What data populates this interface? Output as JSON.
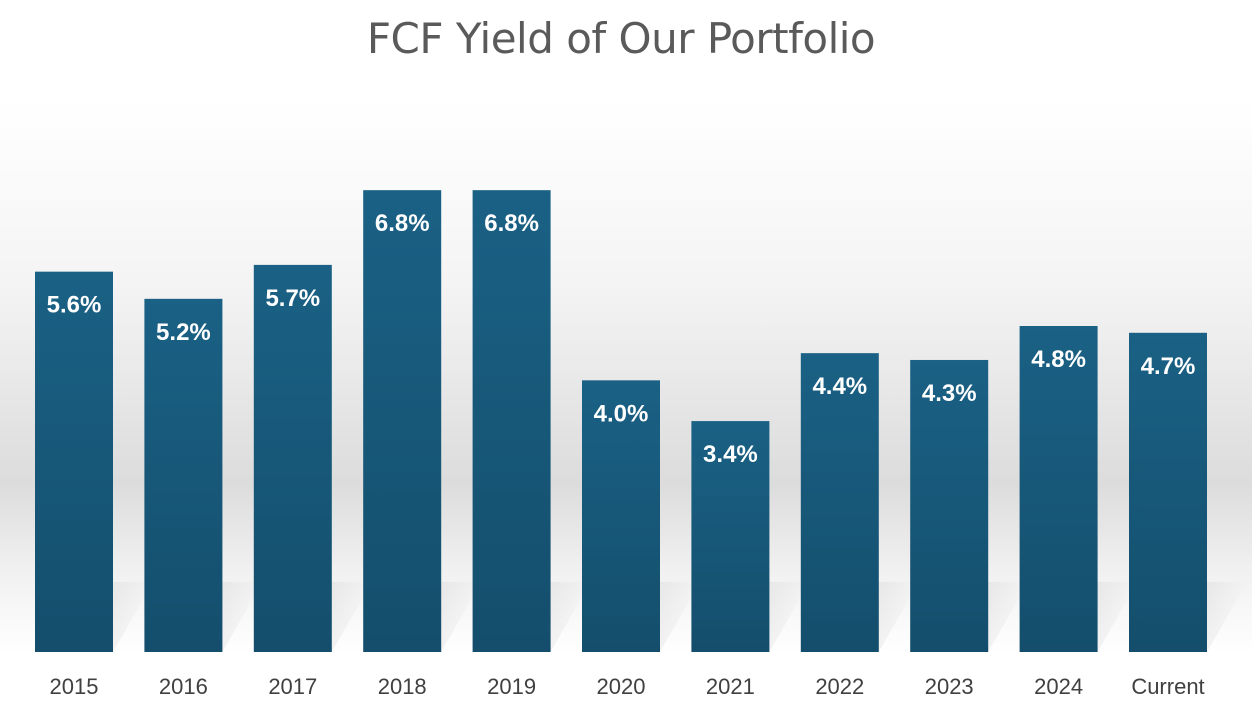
{
  "chart_data": {
    "type": "bar",
    "title": "FCF Yield of Our Portfolio",
    "categories": [
      "2015",
      "2016",
      "2017",
      "2018",
      "2019",
      "2020",
      "2021",
      "2022",
      "2023",
      "2024",
      "Current"
    ],
    "values": [
      5.6,
      5.2,
      5.7,
      6.8,
      6.8,
      4.0,
      3.4,
      4.4,
      4.3,
      4.8,
      4.7
    ],
    "data_labels": [
      "5.6%",
      "5.2%",
      "5.7%",
      "6.8%",
      "6.8%",
      "4.0%",
      "3.4%",
      "4.4%",
      "4.3%",
      "4.8%",
      "4.7%"
    ],
    "xlabel": "",
    "ylabel": "",
    "ylim": [
      0,
      9.6
    ],
    "grid": false,
    "legend": "none",
    "colors": {
      "bar_top": "#1a6185",
      "bar_bottom": "#144e6c",
      "label_text": "#ffffff",
      "tick_text": "#404040",
      "title_text": "#5a5a5a"
    }
  }
}
